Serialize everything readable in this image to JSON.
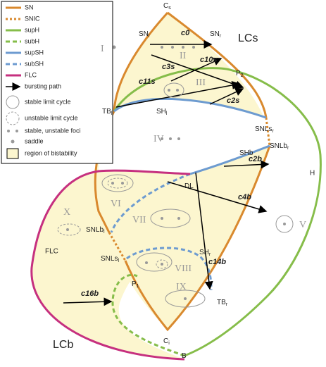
{
  "legend": {
    "items": [
      "SN",
      "SNIC",
      "supH",
      "subH",
      "supSH",
      "subSH",
      "FLC",
      "bursting path",
      "stable limit cycle",
      "unstable limit cycle",
      "stable, unstable foci",
      "saddle",
      "region of bistability"
    ]
  },
  "points": [
    {
      "base": "C",
      "sub": "s"
    },
    {
      "base": "SN",
      "sub": "l"
    },
    {
      "base": "SN",
      "sub": "r"
    },
    {
      "base": "P",
      "sub": "2"
    },
    {
      "base": "TB",
      "sub": "l"
    },
    {
      "base": "SH",
      "sub": "l"
    },
    {
      "base": "SNLs",
      "sub": "r"
    },
    {
      "base": "DL"
    },
    {
      "base": "SHb"
    },
    {
      "base": "SNLb",
      "sub": "r"
    },
    {
      "base": "SNLb",
      "sub": "l"
    },
    {
      "base": "SNLs",
      "sub": "l"
    },
    {
      "base": "SH",
      "sub": "r"
    },
    {
      "base": "P",
      "sub": "1"
    },
    {
      "base": "TB",
      "sub": "r"
    },
    {
      "base": "C",
      "sub": "i"
    },
    {
      "base": "B"
    }
  ],
  "regions": [
    "I",
    "II",
    "III",
    "IV",
    "V",
    "VI",
    "VII",
    "VIII",
    "IX",
    "X"
  ],
  "paths": [
    "c0",
    "c10s",
    "c3s",
    "c11s",
    "c2s",
    "c2b",
    "c4b",
    "c14b",
    "c16b"
  ],
  "labels": {
    "h": "H",
    "flc": "FLC",
    "lcs": "LCs",
    "lcb": "LCb"
  }
}
